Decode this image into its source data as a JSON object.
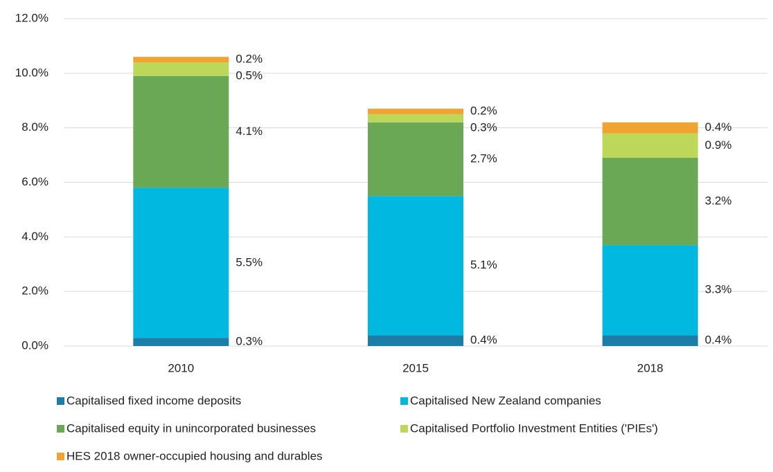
{
  "chart_data": {
    "type": "stacked_bar",
    "categories": [
      "2010",
      "2015",
      "2018"
    ],
    "series": [
      {
        "name": "Capitalised fixed income deposits",
        "color": "#1b7ea8",
        "values": [
          0.3,
          0.4,
          0.4
        ],
        "value_labels": [
          "0.3%",
          "0.4%",
          "0.4%"
        ]
      },
      {
        "name": "Capitalised New Zealand companies",
        "color": "#00b8e0",
        "values": [
          5.5,
          5.1,
          3.3
        ],
        "value_labels": [
          "5.5%",
          "5.1%",
          "3.3%"
        ]
      },
      {
        "name": "Capitalised equity in unincorporated businesses",
        "color": "#6aa855",
        "values": [
          4.1,
          2.7,
          3.2
        ],
        "value_labels": [
          "4.1%",
          "2.7%",
          "3.2%"
        ]
      },
      {
        "name": "Capitalised Portfolio Investment Entities ('PIEs')",
        "color": "#bdd75a",
        "values": [
          0.5,
          0.3,
          0.9
        ],
        "value_labels": [
          "0.5%",
          "0.3%",
          "0.9%"
        ]
      },
      {
        "name": "HES 2018 owner-occupied housing and durables",
        "color": "#f0a330",
        "values": [
          0.2,
          0.2,
          0.4
        ],
        "value_labels": [
          "0.2%",
          "0.2%",
          "0.4%"
        ]
      }
    ],
    "ylim": [
      0,
      12
    ],
    "yticks": [
      {
        "value": 0,
        "label": "0.0%"
      },
      {
        "value": 2,
        "label": "2.0%"
      },
      {
        "value": 4,
        "label": "4.0%"
      },
      {
        "value": 6,
        "label": "6.0%"
      },
      {
        "value": 8,
        "label": "8.0%"
      },
      {
        "value": 10,
        "label": "10.0%"
      },
      {
        "value": 12,
        "label": "12.0%"
      }
    ],
    "grid": true
  }
}
